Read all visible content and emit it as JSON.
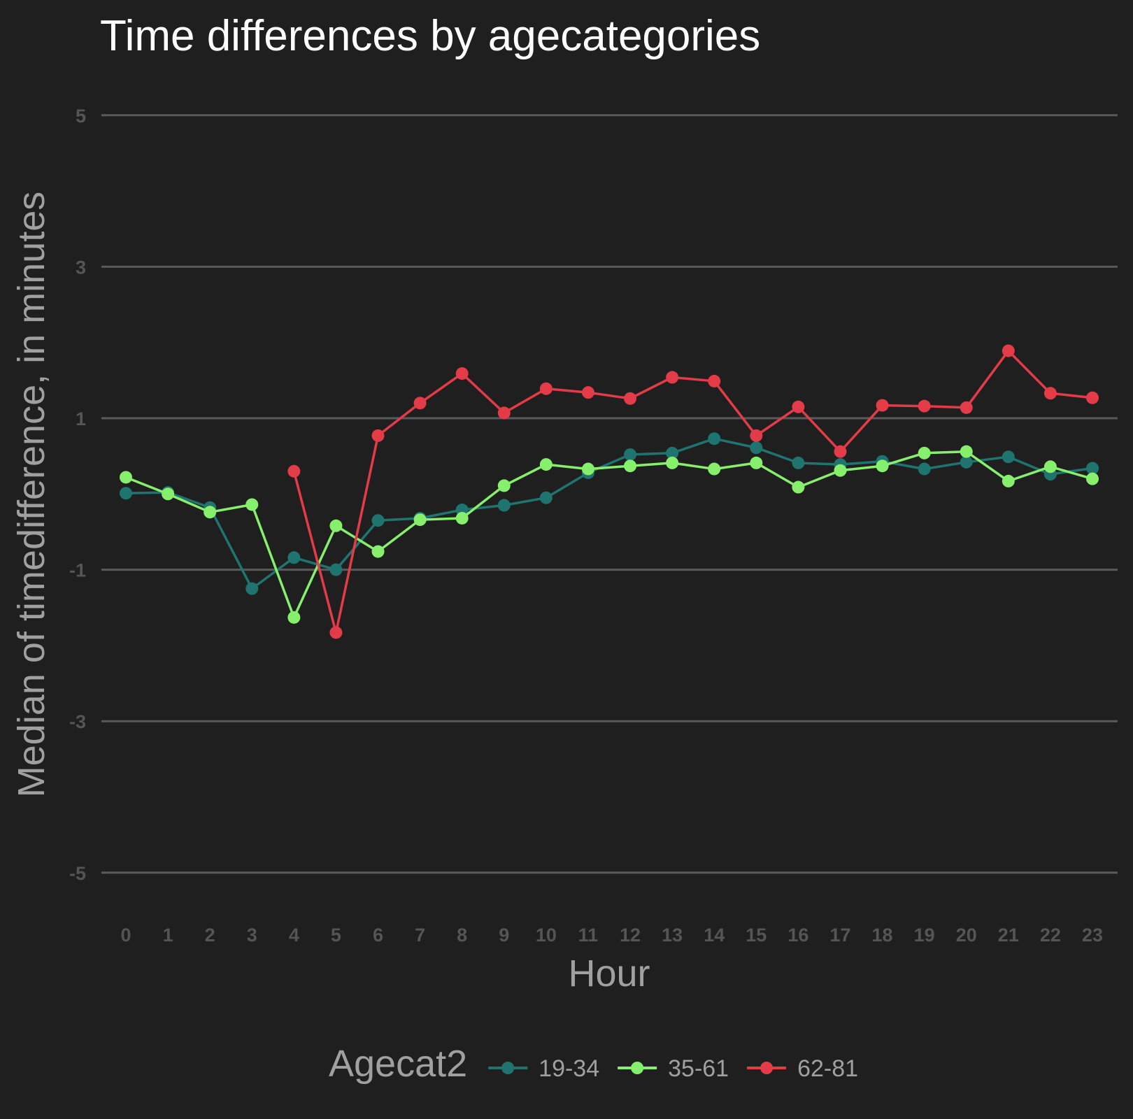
{
  "chart_data": {
    "type": "line",
    "title": "Time differences by agecategories",
    "xlabel": "Hour",
    "ylabel": "Median of timedifference, in minutes",
    "x": [
      0,
      1,
      2,
      3,
      4,
      5,
      6,
      7,
      8,
      9,
      10,
      11,
      12,
      13,
      14,
      15,
      16,
      17,
      18,
      19,
      20,
      21,
      22,
      23
    ],
    "x_tick_labels": [
      "0",
      "1",
      "2",
      "3",
      "4",
      "5",
      "6",
      "7",
      "8",
      "9",
      "10",
      "11",
      "12",
      "13",
      "14",
      "15",
      "16",
      "17",
      "18",
      "19",
      "20",
      "21",
      "22",
      "23"
    ],
    "y_tick_values": [
      5,
      3,
      1,
      -1,
      -3,
      -5
    ],
    "y_tick_labels": [
      "5",
      "3",
      "1",
      "-1",
      "-3",
      "-5"
    ],
    "ylim": [
      -5.5,
      5.3
    ],
    "grid": true,
    "legend": {
      "title": "Agecat2",
      "position": "bottom"
    },
    "series": [
      {
        "name": "19-34",
        "color": "#1f7470",
        "values": [
          0.01,
          0.02,
          -0.18,
          -1.25,
          -0.84,
          -1.0,
          -0.35,
          -0.32,
          -0.21,
          -0.15,
          -0.05,
          0.28,
          0.52,
          0.54,
          0.73,
          0.61,
          0.41,
          0.39,
          0.43,
          0.33,
          0.42,
          0.49,
          0.26,
          0.34
        ]
      },
      {
        "name": "35-61",
        "color": "#86ef6c",
        "values": [
          0.22,
          0.0,
          -0.24,
          -0.14,
          -1.63,
          -0.42,
          -0.76,
          -0.34,
          -0.32,
          0.11,
          0.39,
          0.33,
          0.37,
          0.41,
          0.33,
          0.41,
          0.09,
          0.31,
          0.37,
          0.54,
          0.56,
          0.17,
          0.36,
          0.2
        ]
      },
      {
        "name": "62-81",
        "color": "#e33b47",
        "values": [
          null,
          null,
          null,
          null,
          0.3,
          -1.83,
          0.77,
          1.2,
          1.59,
          1.07,
          1.39,
          1.34,
          1.26,
          1.54,
          1.49,
          0.77,
          1.15,
          0.56,
          1.17,
          1.16,
          1.14,
          1.89,
          1.33,
          1.27
        ]
      }
    ]
  }
}
